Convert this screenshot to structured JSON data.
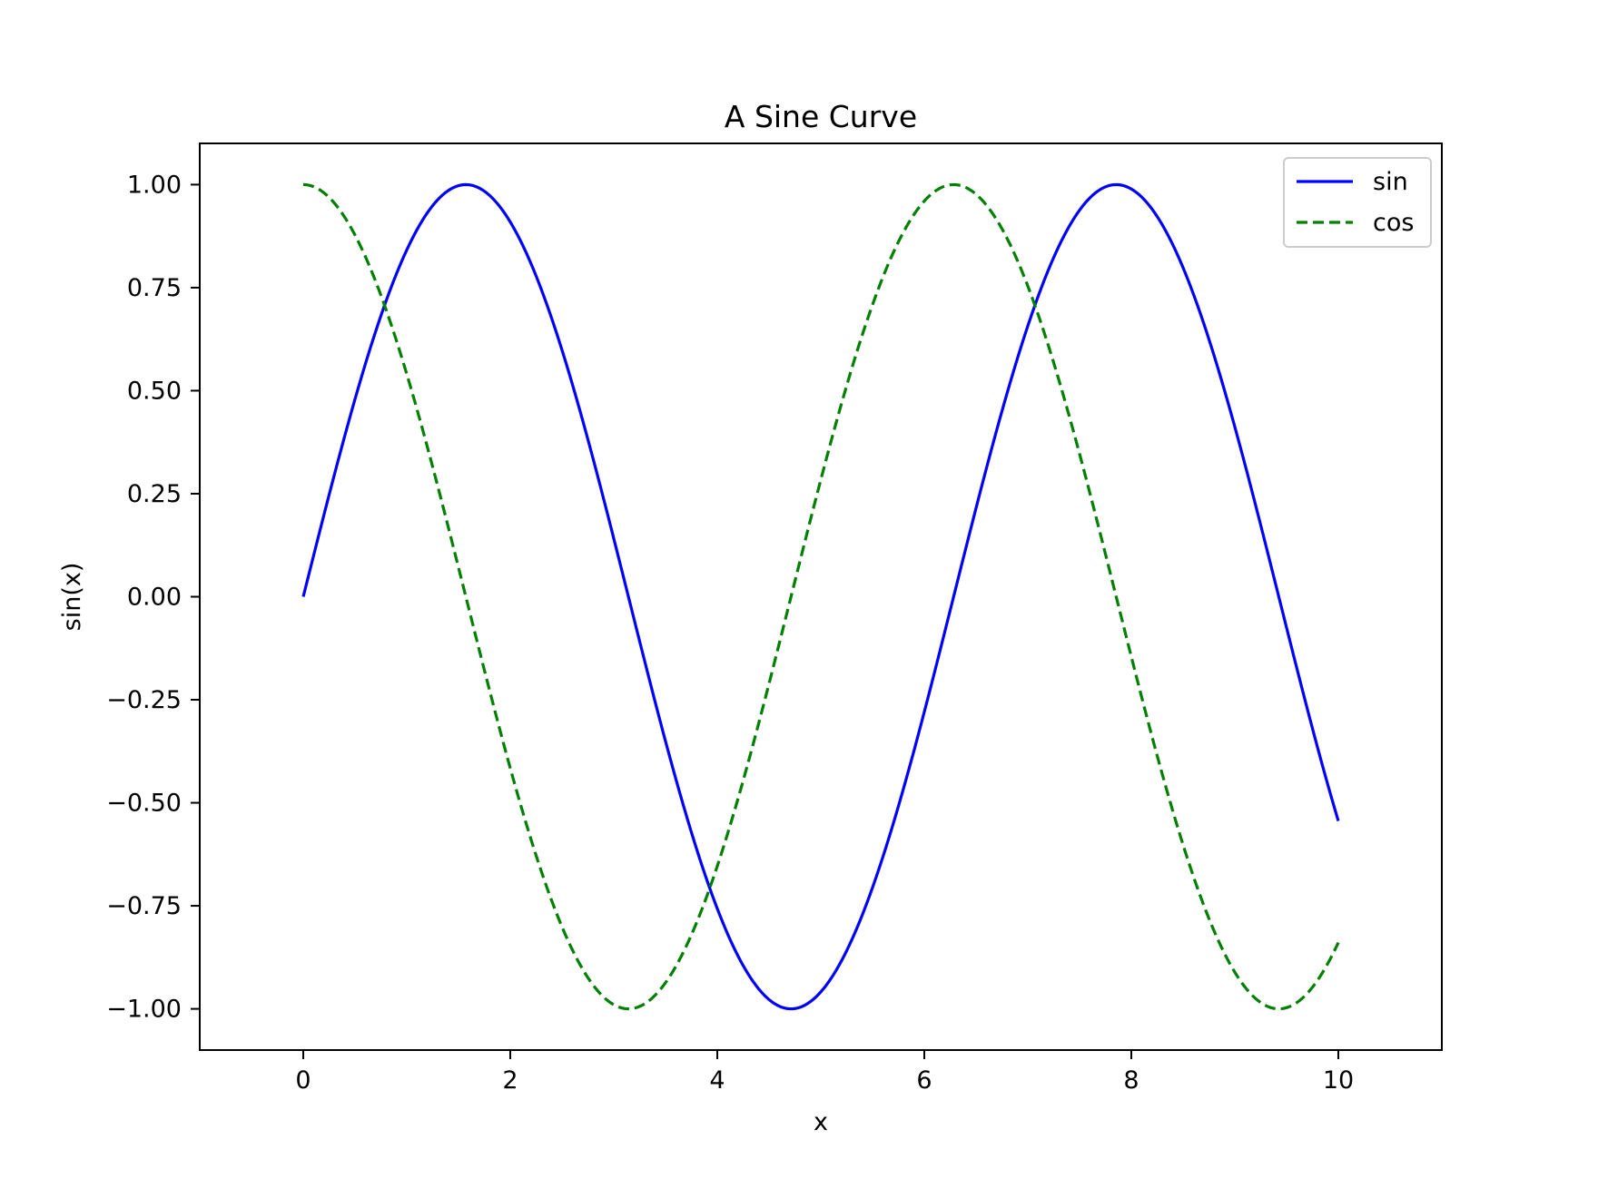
{
  "chart_data": {
    "type": "line",
    "title": "A Sine Curve",
    "xlabel": "x",
    "ylabel": "sin(x)",
    "xlim": [
      -1.0,
      11.0
    ],
    "ylim": [
      -1.1,
      1.1
    ],
    "xticks": [
      0,
      2,
      4,
      6,
      8,
      10
    ],
    "xtick_labels": [
      "0",
      "2",
      "4",
      "6",
      "8",
      "10"
    ],
    "yticks": [
      1.0,
      0.75,
      0.5,
      0.25,
      0.0,
      -0.25,
      -0.5,
      -0.75,
      -1.0
    ],
    "ytick_labels": [
      "1.00",
      "0.75",
      "0.50",
      "0.25",
      "0.00",
      "−0.25",
      "−0.50",
      "−0.75",
      "−1.00"
    ],
    "grid": false,
    "legend_position": "top-right",
    "series": [
      {
        "name": "sin",
        "function": "sin",
        "color": "#0000ff",
        "linestyle": "solid",
        "x": [
          0.0,
          0.25,
          0.5,
          0.75,
          1.0,
          1.25,
          1.5,
          1.75,
          2.0,
          2.25,
          2.5,
          2.75,
          3.0,
          3.25,
          3.5,
          3.75,
          4.0,
          4.25,
          4.5,
          4.75,
          5.0,
          5.25,
          5.5,
          5.75,
          6.0,
          6.25,
          6.5,
          6.75,
          7.0,
          7.25,
          7.5,
          7.75,
          8.0,
          8.25,
          8.5,
          8.75,
          9.0,
          9.25,
          9.5,
          9.75,
          10.0
        ],
        "y": [
          0.0,
          0.247,
          0.479,
          0.682,
          0.841,
          0.949,
          0.997,
          0.984,
          0.909,
          0.778,
          0.598,
          0.382,
          0.141,
          -0.108,
          -0.351,
          -0.572,
          -0.757,
          -0.895,
          -0.978,
          -0.999,
          -0.959,
          -0.859,
          -0.706,
          -0.508,
          -0.279,
          -0.033,
          0.215,
          0.45,
          0.657,
          0.823,
          0.938,
          0.995,
          0.989,
          0.921,
          0.798,
          0.625,
          0.412,
          0.174,
          -0.075,
          -0.319,
          -0.544
        ]
      },
      {
        "name": "cos",
        "function": "cos",
        "color": "#008000",
        "linestyle": "dashed",
        "x": [
          0.0,
          0.25,
          0.5,
          0.75,
          1.0,
          1.25,
          1.5,
          1.75,
          2.0,
          2.25,
          2.5,
          2.75,
          3.0,
          3.25,
          3.5,
          3.75,
          4.0,
          4.25,
          4.5,
          4.75,
          5.0,
          5.25,
          5.5,
          5.75,
          6.0,
          6.25,
          6.5,
          6.75,
          7.0,
          7.25,
          7.5,
          7.75,
          8.0,
          8.25,
          8.5,
          8.75,
          9.0,
          9.25,
          9.5,
          9.75,
          10.0
        ],
        "y": [
          1.0,
          0.969,
          0.878,
          0.732,
          0.54,
          0.315,
          0.071,
          -0.178,
          -0.416,
          -0.628,
          -0.801,
          -0.924,
          -0.99,
          -0.994,
          -0.936,
          -0.82,
          -0.654,
          -0.446,
          -0.211,
          0.038,
          0.284,
          0.512,
          0.709,
          0.861,
          0.96,
          0.999,
          0.977,
          0.893,
          0.754,
          0.568,
          0.347,
          0.105,
          -0.146,
          -0.388,
          -0.602,
          -0.781,
          -0.911,
          -0.985,
          -0.997,
          -0.948,
          -0.839
        ]
      }
    ]
  }
}
